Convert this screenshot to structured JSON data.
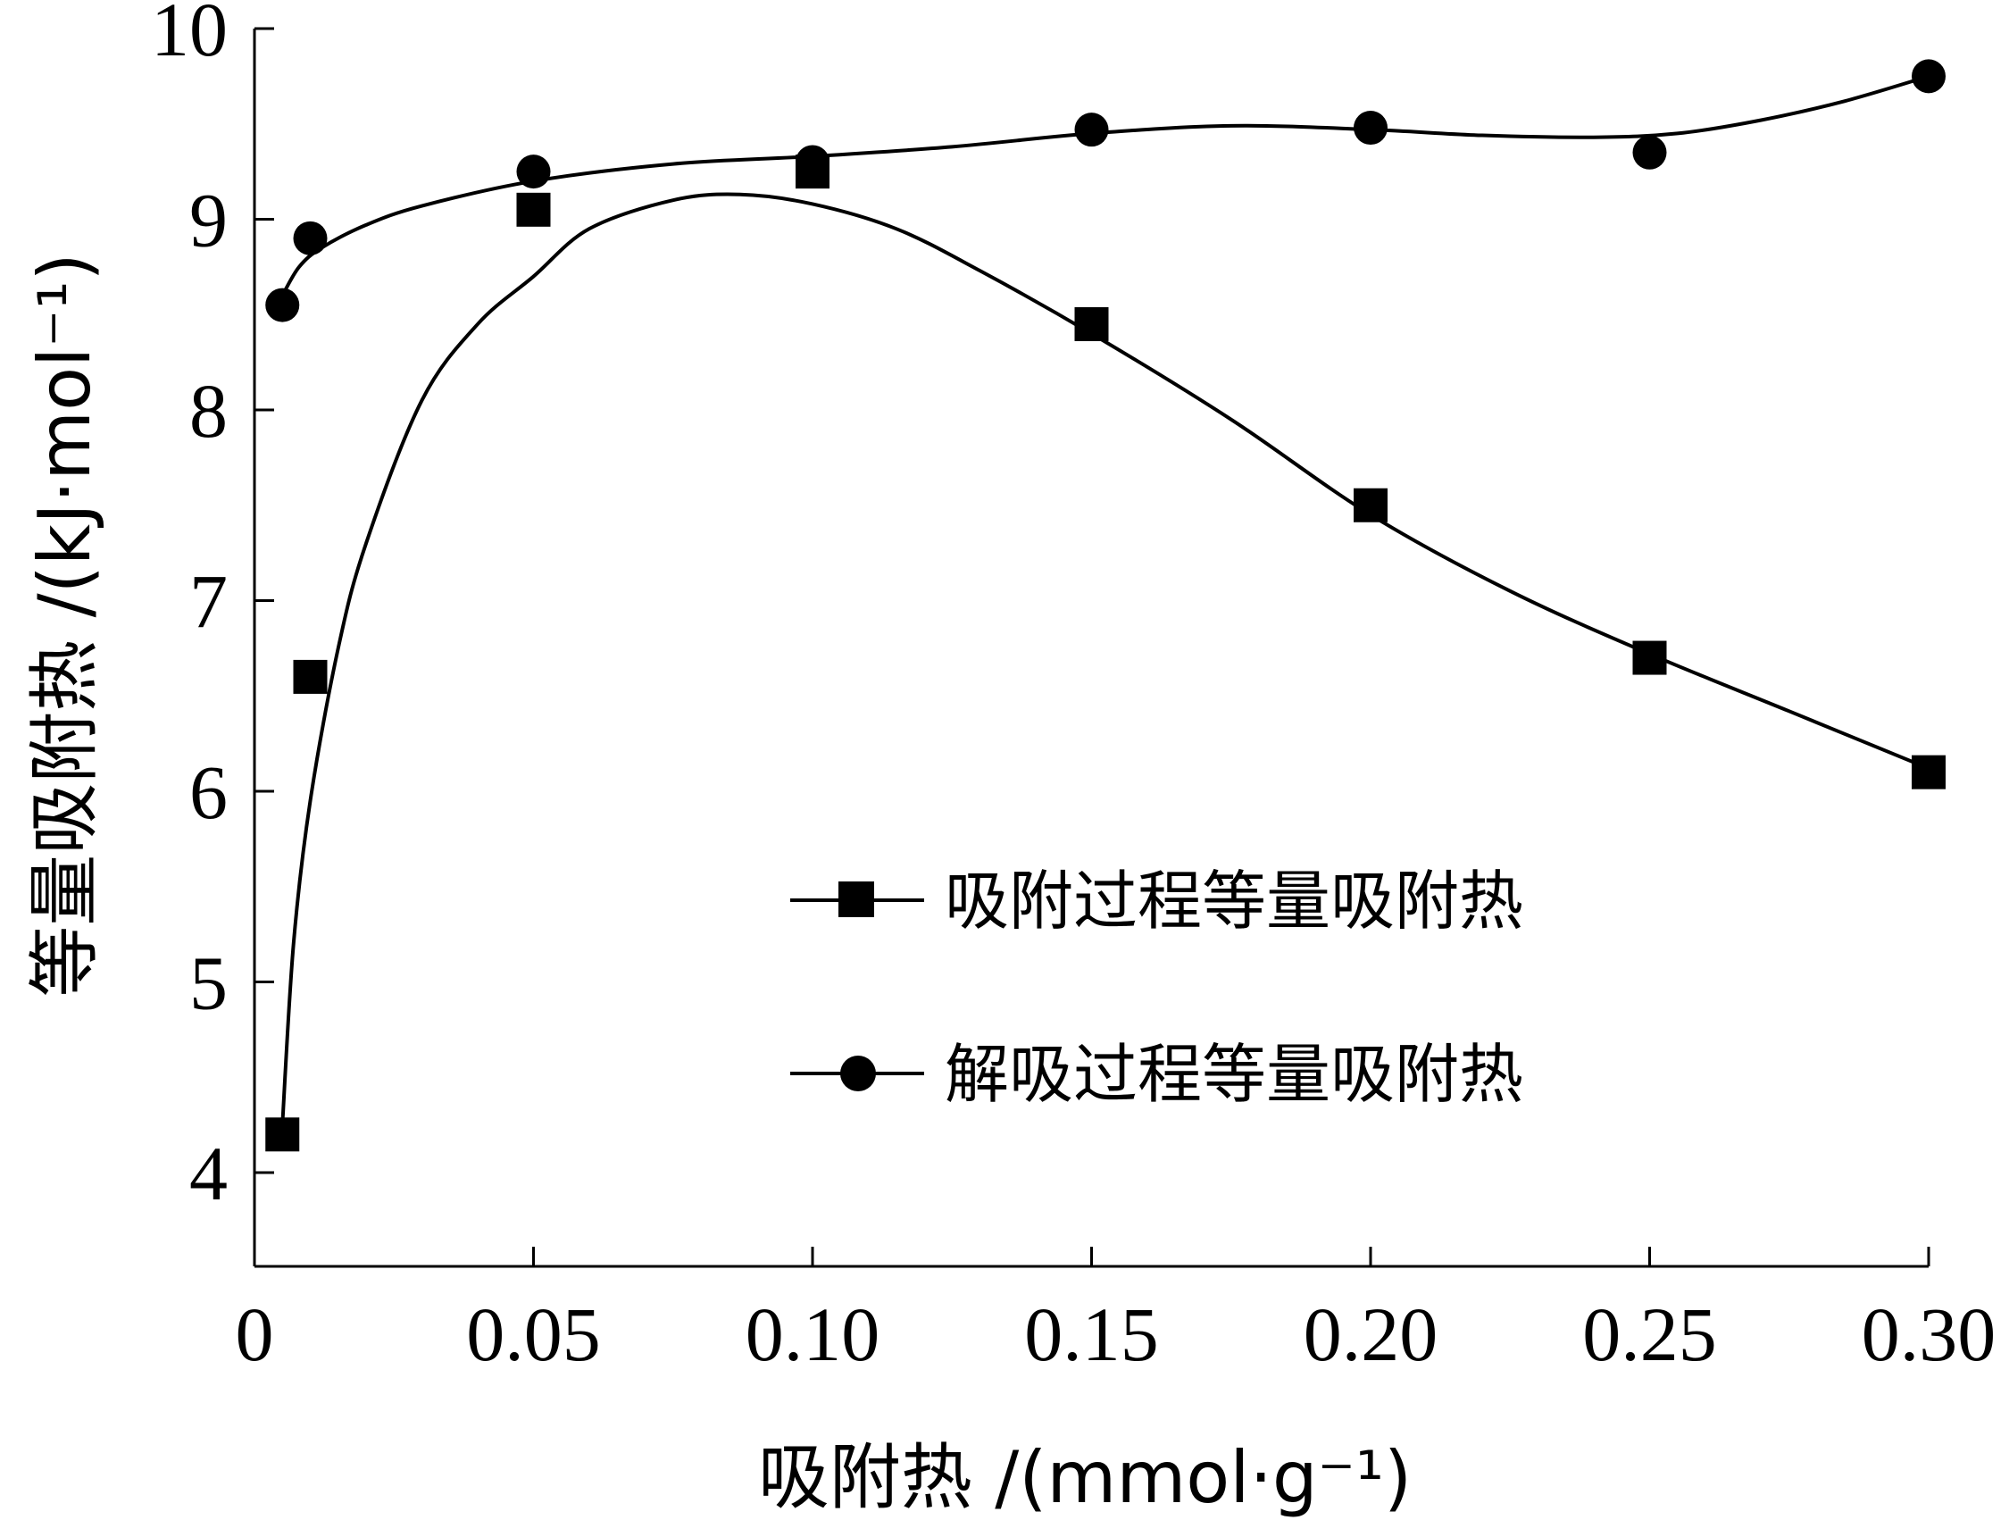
{
  "chart_data": {
    "type": "line",
    "title": "",
    "xlabel": "吸附热 /(mmol·g⁻¹)",
    "ylabel": "等量吸附热 /(kJ·mol⁻¹)",
    "xlim": [
      0,
      0.3
    ],
    "ylim": [
      3.5,
      10
    ],
    "x_ticks": [
      0,
      0.05,
      0.1,
      0.15,
      0.2,
      0.25,
      0.3
    ],
    "x_tick_labels": [
      "0",
      "0.05",
      "0.10",
      "0.15",
      "0.20",
      "0.25",
      "0.30"
    ],
    "y_ticks": [
      4,
      5,
      6,
      7,
      8,
      9,
      10
    ],
    "y_tick_labels": [
      "4",
      "5",
      "6",
      "7",
      "8",
      "9",
      "10"
    ],
    "grid": false,
    "legend_position": "bottom-right",
    "series": [
      {
        "name": "吸附过程等量吸附热",
        "marker": "square",
        "color": "#000000",
        "x": [
          0.005,
          0.01,
          0.05,
          0.1,
          0.15,
          0.2,
          0.25,
          0.3
        ],
        "y": [
          4.2,
          6.6,
          9.05,
          9.25,
          8.45,
          7.5,
          6.7,
          6.1
        ],
        "smooth_curve": [
          [
            0.005,
            4.25
          ],
          [
            0.007,
            5.2
          ],
          [
            0.01,
            5.95
          ],
          [
            0.015,
            6.75
          ],
          [
            0.02,
            7.3
          ],
          [
            0.03,
            8.05
          ],
          [
            0.04,
            8.45
          ],
          [
            0.05,
            8.7
          ],
          [
            0.06,
            8.95
          ],
          [
            0.075,
            9.1
          ],
          [
            0.087,
            9.13
          ],
          [
            0.1,
            9.08
          ],
          [
            0.115,
            8.95
          ],
          [
            0.13,
            8.73
          ],
          [
            0.15,
            8.4
          ],
          [
            0.175,
            7.95
          ],
          [
            0.2,
            7.45
          ],
          [
            0.225,
            7.05
          ],
          [
            0.25,
            6.72
          ],
          [
            0.275,
            6.42
          ],
          [
            0.3,
            6.12
          ]
        ]
      },
      {
        "name": "解吸过程等量吸附热",
        "marker": "circle",
        "color": "#000000",
        "x": [
          0.005,
          0.01,
          0.05,
          0.1,
          0.15,
          0.2,
          0.25,
          0.3
        ],
        "y": [
          8.55,
          8.9,
          9.25,
          9.3,
          9.47,
          9.48,
          9.35,
          9.75
        ],
        "smooth_curve": [
          [
            0.005,
            8.6
          ],
          [
            0.008,
            8.75
          ],
          [
            0.012,
            8.85
          ],
          [
            0.02,
            8.97
          ],
          [
            0.03,
            9.07
          ],
          [
            0.05,
            9.2
          ],
          [
            0.075,
            9.29
          ],
          [
            0.1,
            9.33
          ],
          [
            0.125,
            9.38
          ],
          [
            0.15,
            9.45
          ],
          [
            0.175,
            9.49
          ],
          [
            0.2,
            9.47
          ],
          [
            0.22,
            9.44
          ],
          [
            0.24,
            9.43
          ],
          [
            0.255,
            9.45
          ],
          [
            0.27,
            9.52
          ],
          [
            0.285,
            9.62
          ],
          [
            0.3,
            9.75
          ]
        ]
      }
    ]
  }
}
